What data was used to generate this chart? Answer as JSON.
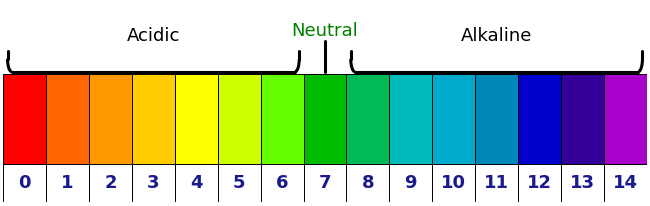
{
  "ph_values": [
    0,
    1,
    2,
    3,
    4,
    5,
    6,
    7,
    8,
    9,
    10,
    11,
    12,
    13,
    14
  ],
  "colors": [
    "#FF0000",
    "#FF6600",
    "#FF9900",
    "#FFCC00",
    "#FFFF00",
    "#CCFF00",
    "#66FF00",
    "#00BB00",
    "#00BB55",
    "#00BBBB",
    "#00AACC",
    "#0088BB",
    "#0000CC",
    "#330099",
    "#AA00CC"
  ],
  "label_color": "#1a1a8c",
  "background_color": "#ffffff",
  "title_acidic": "Acidic",
  "title_neutral": "Neutral",
  "title_alkaline": "Alkaline",
  "title_fontsize": 13,
  "number_fontsize": 13,
  "neutral_color": "#008000"
}
